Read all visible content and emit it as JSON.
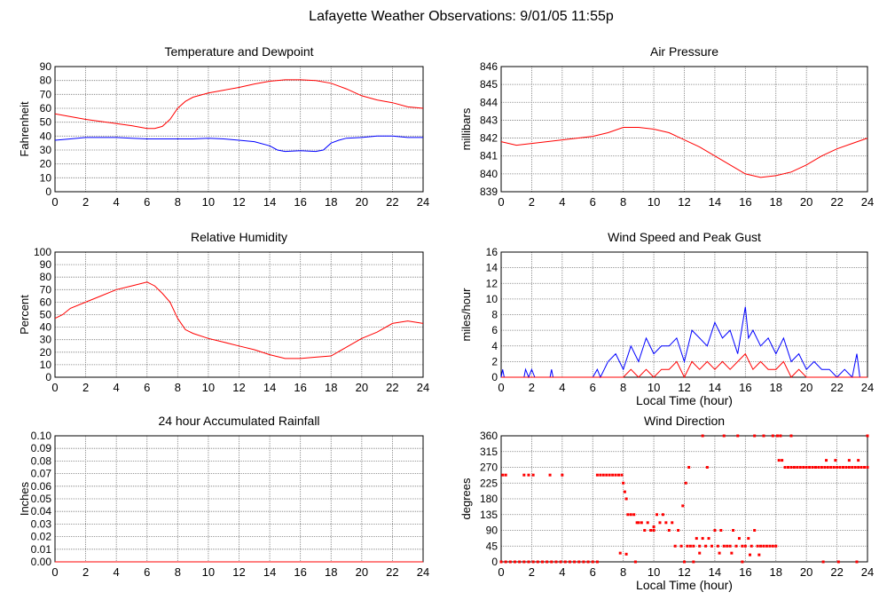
{
  "page_title": "Lafayette Weather Observations: 9/01/05 11:55p",
  "chart_data": [
    {
      "type": "line",
      "title": "Temperature and Dewpoint",
      "ylabel": "Fahrenheit",
      "xlabel": "",
      "xlim": [
        0,
        24
      ],
      "ylim": [
        0,
        90
      ],
      "xticks": [
        0,
        2,
        4,
        6,
        8,
        10,
        12,
        14,
        16,
        18,
        20,
        22,
        24
      ],
      "yticks": [
        0,
        10,
        20,
        30,
        40,
        50,
        60,
        70,
        80,
        90
      ],
      "grid": true,
      "series": [
        {
          "color": "#ff0000",
          "x": [
            0,
            1,
            2,
            3,
            4,
            5,
            6,
            6.5,
            7,
            7.5,
            8,
            8.5,
            9,
            10,
            11,
            12,
            13,
            14,
            15,
            16,
            17,
            18,
            19,
            20,
            21,
            22,
            23,
            24
          ],
          "y": [
            56,
            54,
            52,
            50.5,
            49,
            47.5,
            45.5,
            45.5,
            47,
            52,
            60,
            65,
            68,
            71,
            73,
            75,
            77.5,
            79.5,
            80.5,
            80.5,
            80,
            78,
            74,
            69,
            66,
            64,
            61,
            60
          ]
        },
        {
          "color": "#0000ff",
          "x": [
            0,
            1,
            2,
            3,
            4,
            5,
            6,
            7,
            8,
            9,
            10,
            11,
            12,
            13,
            14,
            14.5,
            15,
            16,
            17,
            17.5,
            18,
            18.5,
            19,
            20,
            21,
            22,
            23,
            24
          ],
          "y": [
            37,
            38,
            39,
            39,
            39,
            38.5,
            38,
            38,
            38,
            38,
            38.5,
            38,
            37,
            36,
            33,
            30,
            29,
            29.5,
            29,
            30,
            35,
            37,
            38.5,
            39,
            40,
            40,
            39,
            39
          ]
        }
      ]
    },
    {
      "type": "line",
      "title": "Air Pressure",
      "ylabel": "millibars",
      "xlabel": "",
      "xlim": [
        0,
        24
      ],
      "ylim": [
        839,
        846
      ],
      "xticks": [
        0,
        2,
        4,
        6,
        8,
        10,
        12,
        14,
        16,
        18,
        20,
        22,
        24
      ],
      "yticks": [
        839,
        840,
        841,
        842,
        843,
        844,
        845,
        846
      ],
      "grid": true,
      "series": [
        {
          "color": "#ff0000",
          "x": [
            0,
            1,
            2,
            3,
            4,
            5,
            6,
            7,
            8,
            9,
            10,
            11,
            12,
            13,
            14,
            15,
            16,
            17,
            18,
            19,
            20,
            21,
            22,
            23,
            24
          ],
          "y": [
            841.8,
            841.6,
            841.7,
            841.8,
            841.9,
            842.0,
            842.1,
            842.3,
            842.6,
            842.6,
            842.5,
            842.3,
            841.9,
            841.5,
            841.0,
            840.5,
            840.0,
            839.8,
            839.9,
            840.1,
            840.5,
            841.0,
            841.4,
            841.7,
            842.0
          ]
        }
      ]
    },
    {
      "type": "line",
      "title": "Relative Humidity",
      "ylabel": "Percent",
      "xlabel": "",
      "xlim": [
        0,
        24
      ],
      "ylim": [
        0,
        100
      ],
      "xticks": [
        0,
        2,
        4,
        6,
        8,
        10,
        12,
        14,
        16,
        18,
        20,
        22,
        24
      ],
      "yticks": [
        0,
        10,
        20,
        30,
        40,
        50,
        60,
        70,
        80,
        90,
        100
      ],
      "grid": true,
      "series": [
        {
          "color": "#ff0000",
          "x": [
            0,
            0.5,
            1,
            2,
            3,
            4,
            5,
            6,
            6.5,
            7,
            7.5,
            8,
            8.5,
            9,
            10,
            11,
            12,
            13,
            14,
            15,
            16,
            17,
            18,
            19,
            20,
            21,
            22,
            23,
            24
          ],
          "y": [
            47,
            50,
            55,
            60,
            65,
            70,
            73,
            76,
            73,
            67,
            60,
            47,
            38,
            35,
            31,
            28,
            25,
            22,
            18,
            15,
            15,
            16,
            17,
            24,
            31,
            36,
            43,
            45,
            43
          ]
        }
      ]
    },
    {
      "type": "line",
      "title": "Wind Speed and Peak Gust",
      "ylabel": "miles/hour",
      "xlabel": "Local Time (hour)",
      "xlim": [
        0,
        24
      ],
      "ylim": [
        0,
        16
      ],
      "xticks": [
        0,
        2,
        4,
        6,
        8,
        10,
        12,
        14,
        16,
        18,
        20,
        22,
        24
      ],
      "yticks": [
        0,
        2,
        4,
        6,
        8,
        10,
        12,
        14,
        16
      ],
      "grid": true,
      "series": [
        {
          "color": "#0000ff",
          "x": [
            0,
            0.1,
            0.2,
            0.4,
            1.5,
            1.6,
            1.8,
            2,
            2.2,
            3.2,
            3.3,
            3.4,
            6,
            6.3,
            6.5,
            7,
            7.5,
            8,
            8.5,
            9,
            9.5,
            10,
            10.5,
            11,
            11.5,
            12,
            12.5,
            13,
            13.5,
            14,
            14.5,
            15,
            15.5,
            16,
            16.2,
            16.5,
            17,
            17.5,
            18,
            18.5,
            19,
            19.5,
            20,
            20.5,
            21,
            21.5,
            22,
            22.5,
            23,
            23.3,
            23.5,
            24
          ],
          "y": [
            0,
            1,
            0,
            0,
            0,
            1,
            0,
            1,
            0,
            0,
            1,
            0,
            0,
            1,
            0,
            2,
            3,
            1,
            4,
            2,
            5,
            3,
            4,
            4,
            5,
            2,
            6,
            5,
            4,
            7,
            5,
            6,
            3,
            9,
            5,
            6,
            4,
            5,
            3,
            5,
            2,
            3,
            1,
            2,
            1,
            1,
            0,
            1,
            0,
            3,
            0,
            0
          ]
        },
        {
          "color": "#ff0000",
          "x": [
            0,
            7,
            8,
            8.5,
            9,
            9.5,
            10,
            10.5,
            11,
            11.5,
            12,
            12.5,
            13,
            13.5,
            14,
            14.5,
            15,
            15.5,
            16,
            16.5,
            17,
            17.5,
            18,
            18.5,
            19,
            19.5,
            20,
            21,
            22,
            23,
            24
          ],
          "y": [
            0,
            0,
            0,
            1,
            0,
            1,
            0,
            1,
            1,
            2,
            0,
            2,
            1,
            2,
            1,
            2,
            1,
            2,
            3,
            1,
            2,
            1,
            1,
            2,
            0,
            1,
            0,
            0,
            0,
            0,
            0
          ]
        }
      ]
    },
    {
      "type": "line",
      "title": "24 hour Accumulated Rainfall",
      "ylabel": "Inches",
      "xlabel": "",
      "xlim": [
        0,
        24
      ],
      "ylim": [
        0,
        0.1
      ],
      "xticks": [
        0,
        2,
        4,
        6,
        8,
        10,
        12,
        14,
        16,
        18,
        20,
        22,
        24
      ],
      "yticks": [
        "0.00",
        "0.01",
        "0.02",
        "0.03",
        "0.04",
        "0.05",
        "0.06",
        "0.07",
        "0.08",
        "0.09",
        "0.10"
      ],
      "grid": true,
      "series": [
        {
          "color": "#ff0000",
          "x": [
            0,
            24
          ],
          "y": [
            0,
            0
          ]
        }
      ]
    },
    {
      "type": "scatter",
      "title": "Wind Direction",
      "ylabel": "degrees",
      "xlabel": "Local Time (hour)",
      "xlim": [
        0,
        24
      ],
      "ylim": [
        0,
        360
      ],
      "xticks": [
        0,
        2,
        4,
        6,
        8,
        10,
        12,
        14,
        16,
        18,
        20,
        22,
        24
      ],
      "yticks": [
        0,
        45,
        90,
        135,
        180,
        225,
        270,
        315,
        360
      ],
      "grid": true,
      "series": [
        {
          "color": "#ff0000",
          "x": [
            0,
            0.3,
            0.6,
            0.9,
            1.2,
            1.5,
            1.8,
            2.1,
            2.4,
            2.7,
            3,
            3.3,
            3.6,
            3.9,
            4.2,
            4.5,
            4.8,
            5.1,
            5.4,
            5.7,
            6,
            6.3,
            0.1,
            0.3,
            1.5,
            1.8,
            2.1,
            3.2,
            4,
            6.3,
            6.5,
            6.7,
            6.9,
            7.1,
            7.3,
            7.5,
            7.7,
            7.9,
            8,
            8.1,
            8.2,
            8.3,
            8.5,
            8.7,
            8.9,
            9,
            9.2,
            9.4,
            9.6,
            9.8,
            10,
            10.2,
            10.4,
            10.6,
            10.8,
            11,
            11.2,
            11.4,
            11.6,
            11.8,
            12,
            12.2,
            12.4,
            12.6,
            12.8,
            13,
            13.2,
            13.4,
            13.6,
            13.8,
            14,
            14.2,
            14.4,
            14.6,
            14.8,
            15,
            15.2,
            15.4,
            15.6,
            15.8,
            16,
            16.2,
            16.4,
            16.6,
            16.8,
            17,
            17.2,
            17.4,
            17.6,
            17.8,
            18,
            18.2,
            18.4,
            18.6,
            18.8,
            19,
            19.2,
            19.4,
            19.6,
            19.8,
            20,
            20.2,
            20.4,
            20.6,
            20.8,
            21,
            21.2,
            21.4,
            21.6,
            21.8,
            22,
            22.2,
            22.4,
            22.6,
            22.8,
            23,
            23.2,
            23.4,
            23.6,
            23.8,
            24,
            12.1,
            12.3,
            13.2,
            13.5,
            14.6,
            15.5,
            16.6,
            17.2,
            17.8,
            18.1,
            18.3,
            19,
            21.3,
            21.9,
            22.8,
            23.4,
            7.8,
            8.2,
            10,
            11.9,
            13,
            14.3,
            15.1,
            16.3,
            16.9,
            8.8,
            12.6,
            15.8,
            21.1,
            22.1,
            23.3,
            24
          ],
          "y": [
            0,
            0,
            0,
            0,
            0,
            0,
            0,
            0,
            0,
            0,
            0,
            0,
            0,
            0,
            0,
            0,
            0,
            0,
            0,
            0,
            0,
            0,
            248,
            248,
            248,
            248,
            248,
            248,
            248,
            248,
            248,
            248,
            248,
            248,
            248,
            248,
            248,
            248,
            225,
            200,
            180,
            135,
            135,
            135,
            112,
            112,
            112,
            90,
            112,
            90,
            90,
            135,
            112,
            135,
            112,
            90,
            112,
            45,
            90,
            45,
            0,
            45,
            45,
            45,
            67,
            45,
            67,
            45,
            67,
            45,
            90,
            45,
            90,
            45,
            45,
            45,
            90,
            45,
            67,
            45,
            45,
            67,
            45,
            90,
            45,
            45,
            45,
            45,
            45,
            45,
            45,
            290,
            290,
            270,
            270,
            270,
            270,
            270,
            270,
            270,
            270,
            270,
            270,
            270,
            270,
            270,
            270,
            270,
            270,
            270,
            270,
            270,
            270,
            270,
            270,
            270,
            270,
            270,
            270,
            270,
            270,
            225,
            270,
            360,
            270,
            360,
            360,
            360,
            360,
            360,
            360,
            360,
            360,
            290,
            290,
            290,
            290,
            25,
            22,
            100,
            160,
            25,
            25,
            25,
            20,
            20,
            0,
            0,
            0,
            0,
            0,
            0,
            360
          ]
        }
      ]
    }
  ]
}
